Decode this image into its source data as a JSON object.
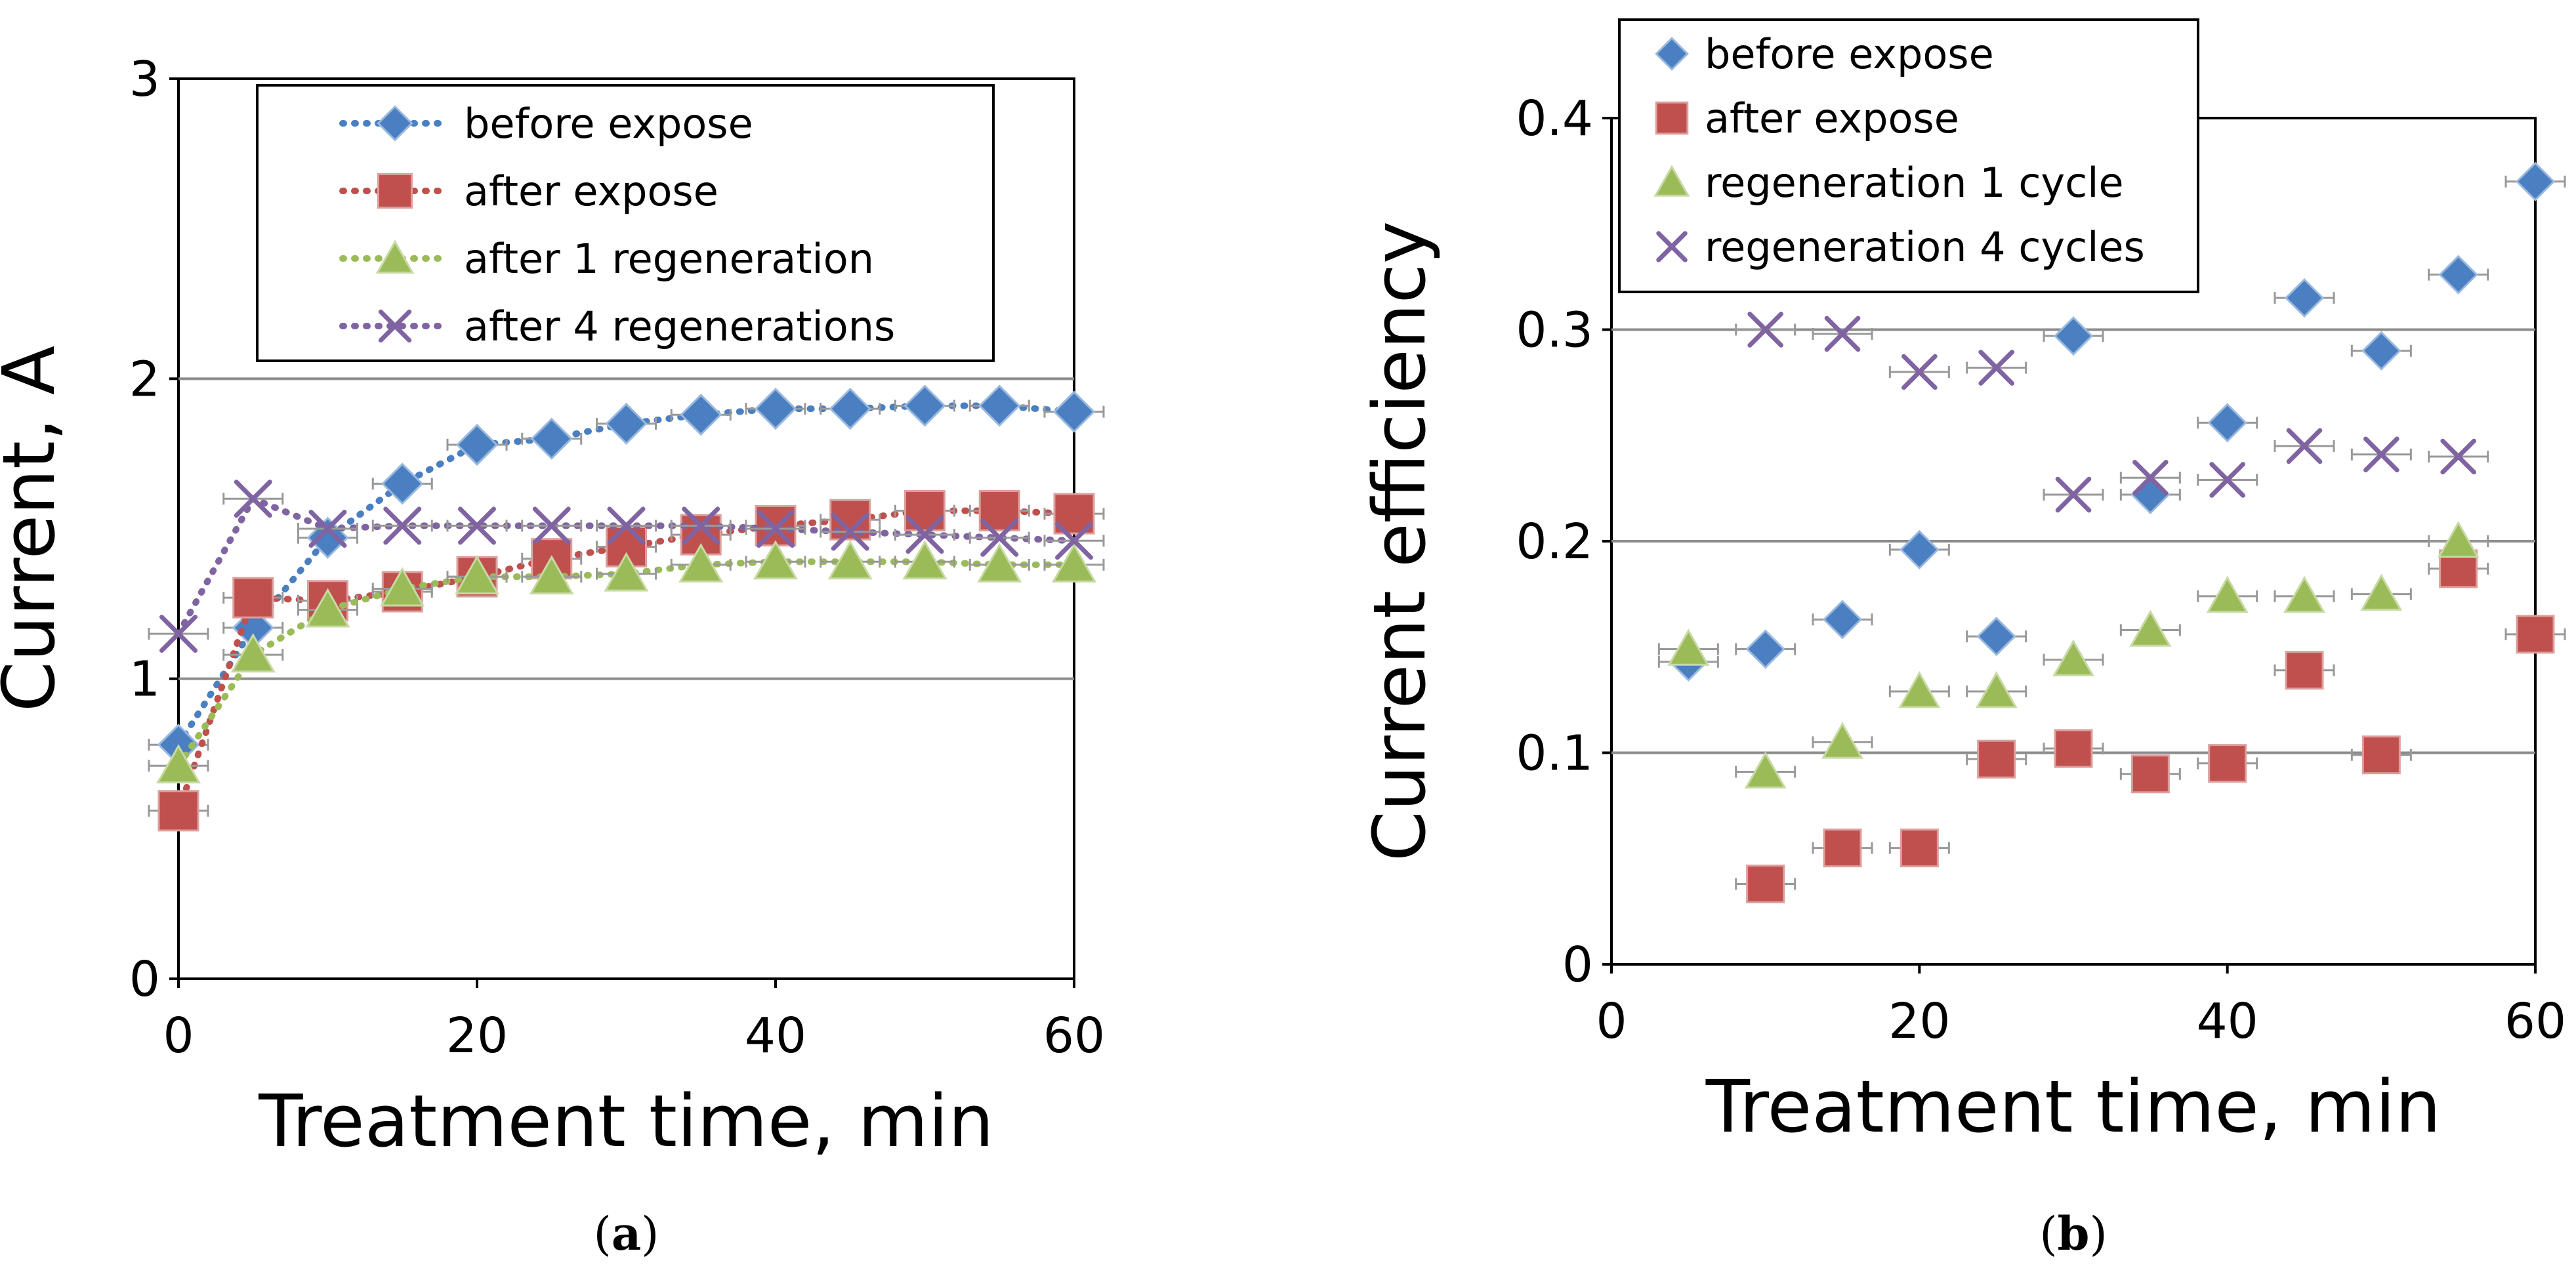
{
  "chart_data": [
    {
      "type": "line",
      "panel_label": "a",
      "title": "",
      "xlabel": "Treatment time, min",
      "ylabel": "Current, A",
      "xlim": [
        0,
        60
      ],
      "ylim": [
        0,
        3
      ],
      "x_ticks": [
        "0",
        "20",
        "40",
        "60"
      ],
      "y_ticks": [
        "0",
        "1",
        "2",
        "3"
      ],
      "legend": "top-right",
      "series": [
        {
          "name": "before expose",
          "marker": "diamond",
          "color": "#4a7fc1",
          "x": [
            0,
            5,
            10,
            15,
            20,
            25,
            30,
            35,
            40,
            45,
            50,
            55,
            60
          ],
          "values": [
            0.78,
            1.17,
            1.47,
            1.65,
            1.78,
            1.8,
            1.85,
            1.88,
            1.9,
            1.9,
            1.91,
            1.91,
            1.89
          ]
        },
        {
          "name": "after expose",
          "marker": "square",
          "color": "#c0504d",
          "x": [
            0,
            5,
            10,
            15,
            20,
            25,
            30,
            35,
            40,
            45,
            50,
            55,
            60
          ],
          "values": [
            0.56,
            1.27,
            1.26,
            1.29,
            1.34,
            1.4,
            1.44,
            1.48,
            1.51,
            1.53,
            1.56,
            1.56,
            1.55
          ]
        },
        {
          "name": "after 1 regeneration",
          "marker": "triangle",
          "color": "#9bbb59",
          "x": [
            0,
            5,
            10,
            15,
            20,
            25,
            30,
            35,
            40,
            45,
            50,
            55,
            60
          ],
          "values": [
            0.71,
            1.08,
            1.23,
            1.3,
            1.34,
            1.34,
            1.35,
            1.38,
            1.39,
            1.39,
            1.39,
            1.38,
            1.38
          ]
        },
        {
          "name": "after 4 regenerations",
          "marker": "x",
          "color": "#8064a2",
          "x": [
            0,
            5,
            10,
            15,
            20,
            25,
            30,
            35,
            40,
            45,
            50,
            55,
            60
          ],
          "values": [
            1.15,
            1.6,
            1.5,
            1.51,
            1.51,
            1.51,
            1.51,
            1.51,
            1.5,
            1.49,
            1.48,
            1.47,
            1.46
          ]
        }
      ]
    },
    {
      "type": "scatter",
      "panel_label": "b",
      "title": "",
      "xlabel": "Treatment time, min",
      "ylabel": "Current efficiency",
      "xlim": [
        0,
        60
      ],
      "ylim": [
        0,
        0.4
      ],
      "x_ticks": [
        "0",
        "20",
        "40",
        "60"
      ],
      "y_ticks": [
        "0",
        "0.1",
        "0.2",
        "0.3",
        "0.4"
      ],
      "legend": "top-left",
      "series": [
        {
          "name": "before expose",
          "marker": "diamond",
          "color": "#4a7fc1",
          "x": [
            5,
            10,
            15,
            20,
            25,
            30,
            35,
            40,
            45,
            50,
            55,
            60
          ],
          "values": [
            0.143,
            0.149,
            0.163,
            0.196,
            0.155,
            0.297,
            0.222,
            0.256,
            0.315,
            0.29,
            0.326,
            0.37
          ]
        },
        {
          "name": "after expose",
          "marker": "square",
          "color": "#c0504d",
          "x": [
            10,
            15,
            20,
            25,
            30,
            35,
            40,
            45,
            50,
            55,
            60
          ],
          "values": [
            0.038,
            0.055,
            0.055,
            0.097,
            0.102,
            0.09,
            0.095,
            0.139,
            0.099,
            0.187,
            0.156
          ]
        },
        {
          "name": "regeneration 1 cycle",
          "marker": "triangle",
          "color": "#9bbb59",
          "x": [
            5,
            10,
            15,
            20,
            25,
            30,
            35,
            40,
            45,
            50,
            55
          ],
          "values": [
            0.149,
            0.091,
            0.105,
            0.129,
            0.129,
            0.144,
            0.158,
            0.174,
            0.174,
            0.175,
            0.2
          ]
        },
        {
          "name": "regeneration 4 cycles",
          "marker": "x",
          "color": "#8064a2",
          "x": [
            10,
            15,
            20,
            25,
            30,
            35,
            40,
            45,
            50,
            55
          ],
          "values": [
            0.3,
            0.298,
            0.28,
            0.282,
            0.222,
            0.23,
            0.229,
            0.245,
            0.241,
            0.24
          ]
        }
      ]
    }
  ]
}
